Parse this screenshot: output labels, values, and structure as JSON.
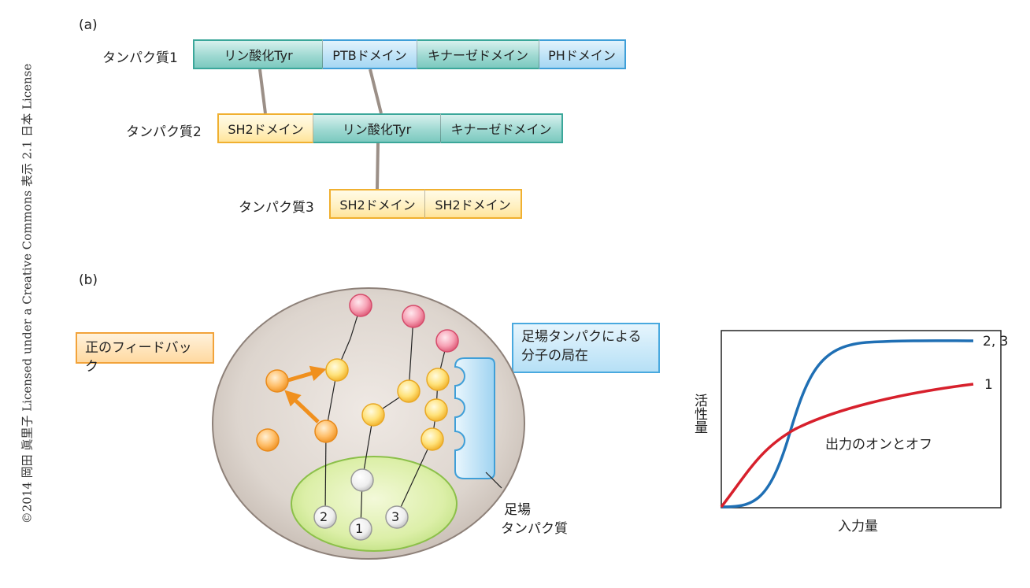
{
  "copyright": "©2014 岡田 眞里子 Licensed under a Creative Commons 表示 2.1 日本 License",
  "panel_a": {
    "label": "(a)",
    "protein1": {
      "label": "タンパク質1",
      "domains": [
        "リン酸化Tyr",
        "PTBドメイン",
        "キナーゼドメイン",
        "PHドメイン"
      ]
    },
    "protein2": {
      "label": "タンパク質2",
      "domains": [
        "SH2ドメイン",
        "リン酸化Tyr",
        "キナーゼドメイン"
      ]
    },
    "protein3": {
      "label": "タンパク質3",
      "domains": [
        "SH2ドメイン",
        "SH2ドメイン"
      ]
    }
  },
  "panel_b": {
    "label": "(b)",
    "positive_feedback": "正のフィードバック",
    "scaffold_localization_line1": "足場タンパクによる",
    "scaffold_localization_line2": "分子の局在",
    "scaffold_label_line1": "足場",
    "scaffold_label_line2": "タンパク質",
    "node_labels": [
      "2",
      "1",
      "3"
    ]
  },
  "graph": {
    "ylabel": "活性量",
    "xlabel": "入力量",
    "annotation": "出力のオンとオフ",
    "series": [
      {
        "name": "2, 3",
        "color": "#1f6fb4"
      },
      {
        "name": "1",
        "color": "#d7202c"
      }
    ]
  }
}
